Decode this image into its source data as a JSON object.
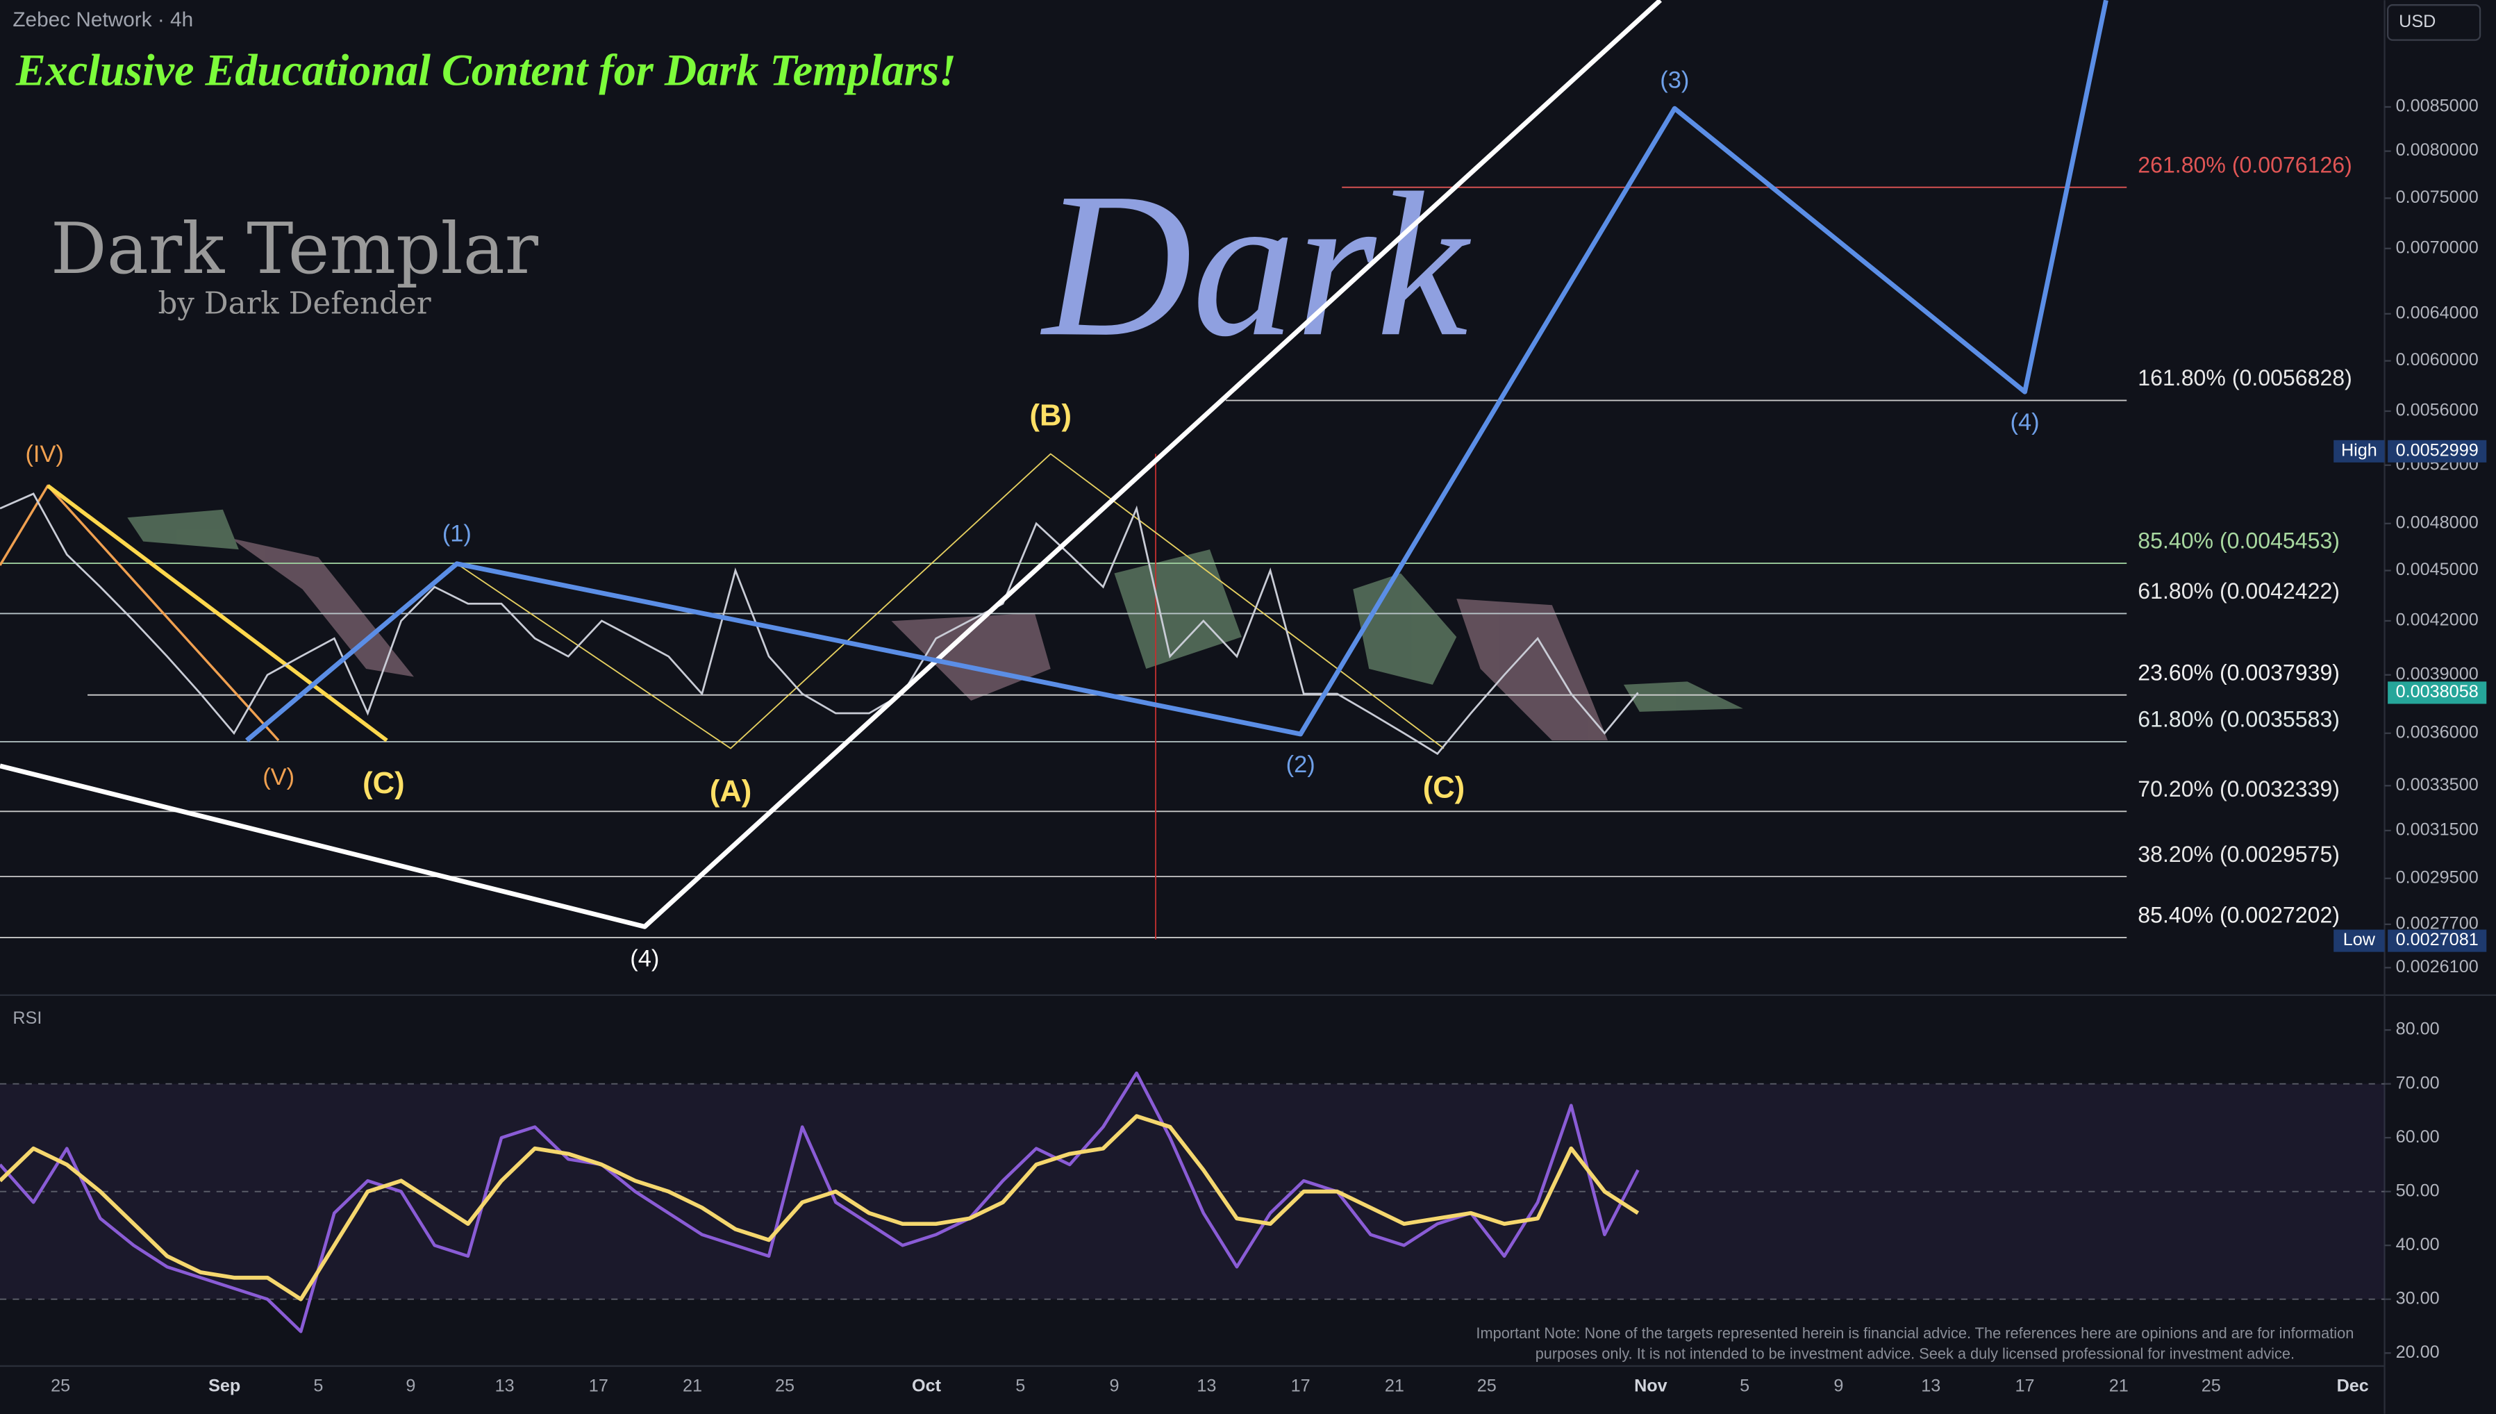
{
  "chart_data": {
    "type": "line",
    "symbol": "Zebec Network · 4h",
    "currency": "USD",
    "banner": "Exclusive Educational Content for Dark Templars!",
    "logo_title": "Dark Templar",
    "logo_subtitle": "by Dark Defender",
    "watermark": "Dark",
    "log_scale": true,
    "ylim": [
      0.00253,
      0.00984
    ],
    "yticks": [
      {
        "value": 0.0085,
        "label": "0.0085000"
      },
      {
        "value": 0.008,
        "label": "0.0080000"
      },
      {
        "value": 0.0075,
        "label": "0.0075000"
      },
      {
        "value": 0.007,
        "label": "0.0070000"
      },
      {
        "value": 0.0064,
        "label": "0.0064000"
      },
      {
        "value": 0.006,
        "label": "0.0060000"
      },
      {
        "value": 0.0056,
        "label": "0.0056000"
      },
      {
        "value": 0.0052,
        "label": "0.0052000"
      },
      {
        "value": 0.0048,
        "label": "0.0048000"
      },
      {
        "value": 0.0045,
        "label": "0.0045000"
      },
      {
        "value": 0.0042,
        "label": "0.0042000"
      },
      {
        "value": 0.0039,
        "label": "0.0039000"
      },
      {
        "value": 0.0036,
        "label": "0.0036000"
      },
      {
        "value": 0.00335,
        "label": "0.0033500"
      },
      {
        "value": 0.00315,
        "label": "0.0031500"
      },
      {
        "value": 0.00295,
        "label": "0.0029500"
      },
      {
        "value": 0.00277,
        "label": "0.0027700"
      },
      {
        "value": 0.00261,
        "label": "0.0026100"
      }
    ],
    "xtick_labels": [
      "25",
      "Sep",
      "5",
      "9",
      "13",
      "17",
      "21",
      "25",
      "Oct",
      "5",
      "9",
      "13",
      "17",
      "21",
      "25",
      "Nov",
      "5",
      "9",
      "13",
      "17",
      "21",
      "25",
      "Dec"
    ],
    "price": {
      "color": "#c9ccd6",
      "values": [
        0.0049,
        0.005,
        0.0046,
        0.0044,
        0.0042,
        0.004,
        0.0038,
        0.0036,
        0.0039,
        0.004,
        0.0041,
        0.0037,
        0.0042,
        0.0044,
        0.0043,
        0.0043,
        0.0041,
        0.004,
        0.0042,
        0.0041,
        0.004,
        0.0038,
        0.0045,
        0.004,
        0.0038,
        0.0037,
        0.0037,
        0.0038,
        0.0041,
        0.0042,
        0.0043,
        0.0048,
        0.0046,
        0.0044,
        0.0049,
        0.004,
        0.0042,
        0.004,
        0.0045,
        0.0038,
        0.0038,
        0.0037,
        0.0036,
        0.0035,
        0.0037,
        0.0039,
        0.0041,
        0.0038,
        0.0036,
        0.0038058
      ]
    },
    "high": {
      "label": "High",
      "value": 0.0052999
    },
    "current": {
      "value": 0.0038058
    },
    "low": {
      "label": "Low",
      "value": 0.0027081
    },
    "fib_levels": [
      {
        "value": 0.0076126,
        "label": "261.80% (0.0076126)"
      },
      {
        "value": 0.0056828,
        "label": "161.80% (0.0056828)"
      },
      {
        "value": 0.0045453,
        "label": "85.40% (0.0045453)"
      },
      {
        "value": 0.0042422,
        "label": "61.80% (0.0042422)"
      },
      {
        "value": 0.0037939,
        "label": "23.60% (0.0037939)"
      },
      {
        "value": 0.0035583,
        "label": "61.80% (0.0035583)"
      },
      {
        "value": 0.0032339,
        "label": "70.20% (0.0032339)"
      },
      {
        "value": 0.0029575,
        "label": "38.20% (0.0029575)"
      },
      {
        "value": 0.0027202,
        "label": "85.40% (0.0027202)"
      }
    ],
    "wave_labels": [
      "(IV)",
      "(V)",
      "(C)",
      "(1)",
      "(A)",
      "(B)",
      "(4)",
      "(2)",
      "(C)",
      "(3)",
      "(4)"
    ],
    "rsi": {
      "title": "RSI",
      "ylim": [
        17,
        85
      ],
      "yticks": [
        {
          "value": 80,
          "label": "80.00"
        },
        {
          "value": 70,
          "label": "70.00"
        },
        {
          "value": 60,
          "label": "60.00"
        },
        {
          "value": 50,
          "label": "50.00"
        },
        {
          "value": 40,
          "label": "40.00"
        },
        {
          "value": 30,
          "label": "30.00"
        },
        {
          "value": 20,
          "label": "20.00"
        }
      ],
      "levels": [
        70,
        50,
        30
      ],
      "color": "#8a5cd6",
      "values": [
        55,
        48,
        58,
        45,
        40,
        36,
        34,
        32,
        30,
        24,
        46,
        52,
        50,
        40,
        38,
        60,
        62,
        56,
        55,
        50,
        46,
        42,
        40,
        38,
        62,
        48,
        44,
        40,
        42,
        45,
        52,
        58,
        55,
        62,
        72,
        60,
        46,
        36,
        46,
        52,
        50,
        42,
        40,
        44,
        46,
        38,
        48,
        66,
        42,
        54
      ],
      "ma_color": "#f5d76e",
      "ma_values": [
        52,
        58,
        55,
        50,
        44,
        38,
        35,
        34,
        34,
        30,
        40,
        50,
        52,
        48,
        44,
        52,
        58,
        57,
        55,
        52,
        50,
        47,
        43,
        41,
        48,
        50,
        46,
        44,
        44,
        45,
        48,
        55,
        57,
        58,
        64,
        62,
        54,
        45,
        44,
        50,
        50,
        47,
        44,
        45,
        46,
        44,
        45,
        58,
        50,
        46
      ]
    },
    "note": [
      "Important Note: None of the targets represented herein is financial advice. The references here are opinions and are for information",
      "purposes only. It is not intended to be investment advice. Seek a duly licensed professional for investment advice."
    ]
  }
}
